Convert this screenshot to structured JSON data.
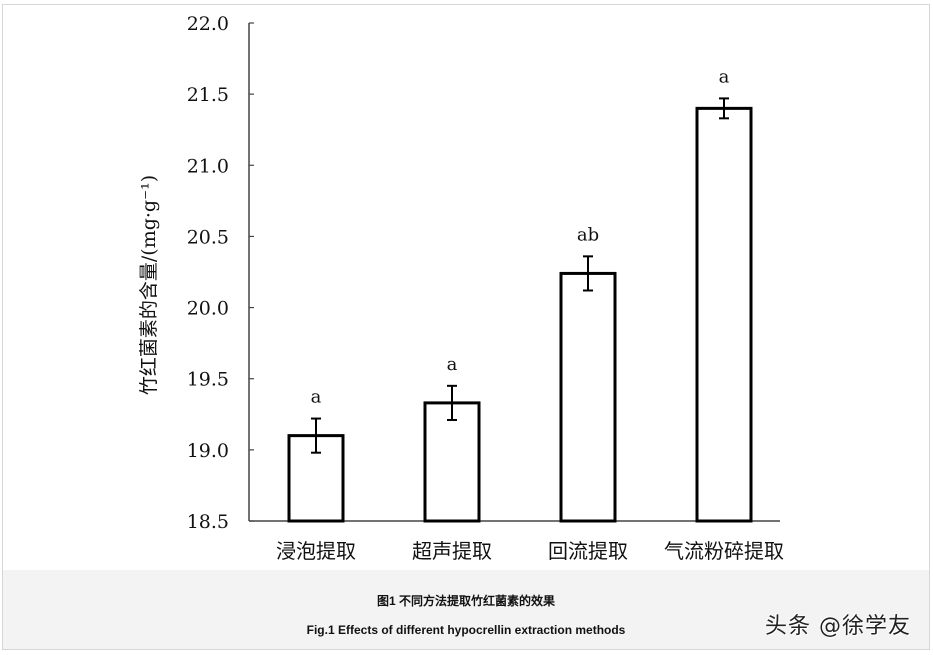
{
  "chart_data": {
    "type": "bar",
    "title": "",
    "xlabel": "",
    "ylabel": "竹红菌素的含量/(mg·g⁻¹)",
    "categories": [
      "浸泡提取",
      "超声提取",
      "回流提取",
      "气流粉碎提取"
    ],
    "values": [
      19.1,
      19.33,
      20.24,
      21.4
    ],
    "error": [
      0.12,
      0.12,
      0.12,
      0.07
    ],
    "significance_labels": [
      "a",
      "a",
      "ab",
      "a"
    ],
    "ylim": [
      18.5,
      22.0
    ],
    "yticks": [
      "18.5",
      "19.0",
      "19.5",
      "20.0",
      "20.5",
      "21.0",
      "21.5",
      "22.0"
    ],
    "grid": false,
    "legend": null,
    "bar_fill": "#ffffff",
    "bar_edge": "#000000"
  },
  "caption": {
    "chinese": "图1   不同方法提取竹红菌素的效果",
    "english": "Fig.1   Effects of different hypocrellin extraction methods"
  },
  "watermark": "头条 @徐学友"
}
